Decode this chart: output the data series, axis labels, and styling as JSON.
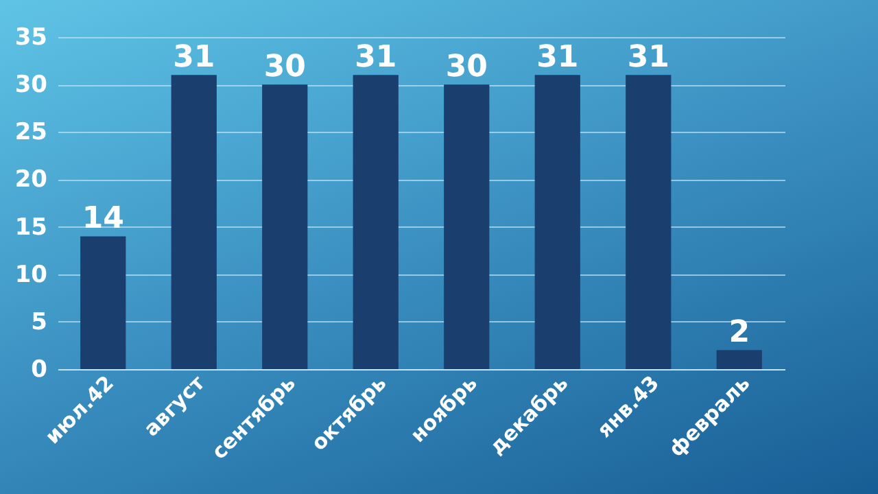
{
  "chart_data": {
    "type": "bar",
    "categories": [
      "июл.42",
      "август",
      "сентябрь",
      "октябрь",
      "ноябрь",
      "декабрь",
      "янв.43",
      "февраль"
    ],
    "values": [
      14,
      31,
      30,
      31,
      30,
      31,
      31,
      2
    ],
    "color": "#1a3f6e",
    "ylim": [
      0,
      35
    ],
    "yticks": [
      0,
      5,
      10,
      15,
      20,
      25,
      30,
      35
    ],
    "grid": "y",
    "data_labels": true
  }
}
